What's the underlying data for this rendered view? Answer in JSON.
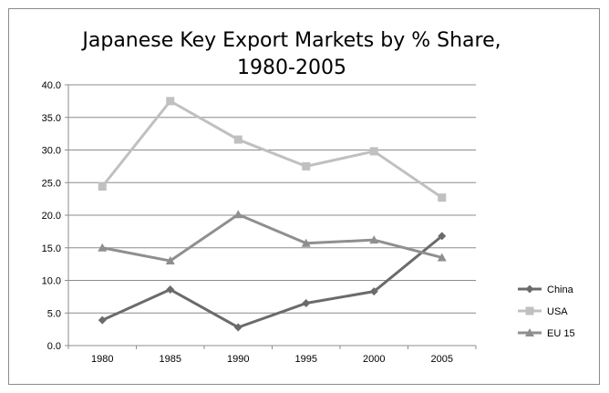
{
  "chart_data": {
    "type": "line",
    "title_line1": "Japanese Key Export Markets by % Share,",
    "title_line2": "1980-2005",
    "xlabel": "",
    "ylabel": "",
    "categories": [
      "1980",
      "1985",
      "1990",
      "1995",
      "2000",
      "2005"
    ],
    "ylim": [
      0,
      40
    ],
    "yticks": [
      "0.0",
      "5.0",
      "10.0",
      "15.0",
      "20.0",
      "25.0",
      "30.0",
      "35.0",
      "40.0"
    ],
    "grid": "horizontal",
    "legend_position": "right",
    "series": [
      {
        "name": "China",
        "values": [
          3.9,
          8.6,
          2.8,
          6.5,
          8.3,
          16.8
        ],
        "color": "#6b6b6b",
        "marker": "diamond"
      },
      {
        "name": "USA",
        "values": [
          24.4,
          37.5,
          31.6,
          27.5,
          29.8,
          22.7
        ],
        "color": "#c0c0c0",
        "marker": "square"
      },
      {
        "name": "EU 15",
        "values": [
          15.0,
          13.0,
          20.1,
          15.7,
          16.2,
          13.5
        ],
        "color": "#8f8f8f",
        "marker": "triangle"
      }
    ]
  }
}
